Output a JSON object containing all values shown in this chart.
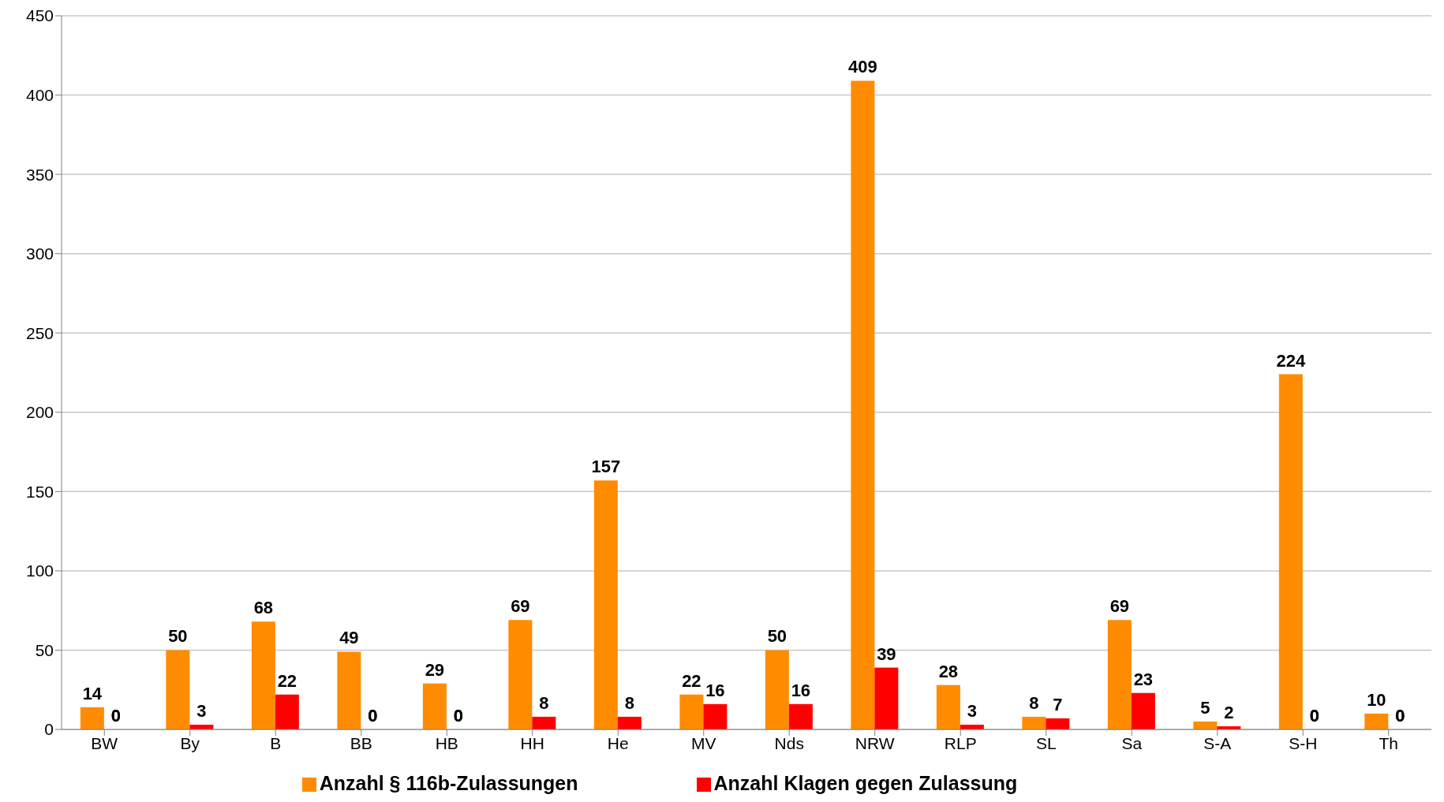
{
  "chart_data": {
    "type": "bar",
    "categories": [
      "BW",
      "By",
      "B",
      "BB",
      "HB",
      "HH",
      "He",
      "MV",
      "Nds",
      "NRW",
      "RLP",
      "SL",
      "Sa",
      "S-A",
      "S-H",
      "Th"
    ],
    "series": [
      {
        "name": "Anzahl § 116b-Zulassungen",
        "color": "#ff8c00",
        "values": [
          14,
          50,
          68,
          49,
          29,
          69,
          157,
          22,
          50,
          409,
          28,
          8,
          69,
          5,
          224,
          10
        ]
      },
      {
        "name": "Anzahl Klagen gegen Zulassung",
        "color": "#ff0000",
        "values": [
          0,
          3,
          22,
          0,
          0,
          8,
          8,
          16,
          16,
          39,
          3,
          7,
          23,
          2,
          0,
          0
        ]
      }
    ],
    "ylim": [
      0,
      450
    ],
    "yticks": [
      0,
      50,
      100,
      150,
      200,
      250,
      300,
      350,
      400,
      450
    ],
    "grid": "y",
    "legend": "bottom",
    "data_labels": true
  }
}
